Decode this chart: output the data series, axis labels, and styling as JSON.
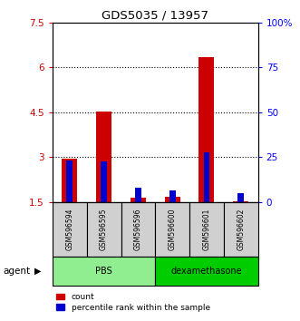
{
  "title": "GDS5035 / 13957",
  "samples": [
    "GSM596594",
    "GSM596595",
    "GSM596596",
    "GSM596600",
    "GSM596601",
    "GSM596602"
  ],
  "red_values": [
    2.95,
    4.52,
    1.65,
    1.68,
    6.35,
    1.53
  ],
  "blue_values": [
    23.0,
    22.5,
    8.0,
    6.5,
    28.0,
    5.0
  ],
  "ylim_left": [
    1.5,
    7.5
  ],
  "ylim_right": [
    0,
    100
  ],
  "yticks_left": [
    1.5,
    3.0,
    4.5,
    6.0,
    7.5
  ],
  "yticks_right": [
    0,
    25,
    50,
    75,
    100
  ],
  "ytick_labels_left": [
    "1.5",
    "3",
    "4.5",
    "6",
    "7.5"
  ],
  "ytick_labels_right": [
    "0",
    "25",
    "50",
    "75",
    "100%"
  ],
  "groups": [
    {
      "label": "PBS",
      "color": "#90EE90"
    },
    {
      "label": "dexamethasone",
      "color": "#00CC00"
    }
  ],
  "red_color": "#cc0000",
  "blue_color": "#0000cc",
  "agent_label": "agent",
  "legend_red": "count",
  "legend_blue": "percentile rank within the sample",
  "bar_bottom": 1.5,
  "red_bar_width": 0.45,
  "blue_bar_width": 0.18,
  "gray_color": "#d0d0d0",
  "grid_yticks": [
    3.0,
    4.5,
    6.0
  ]
}
